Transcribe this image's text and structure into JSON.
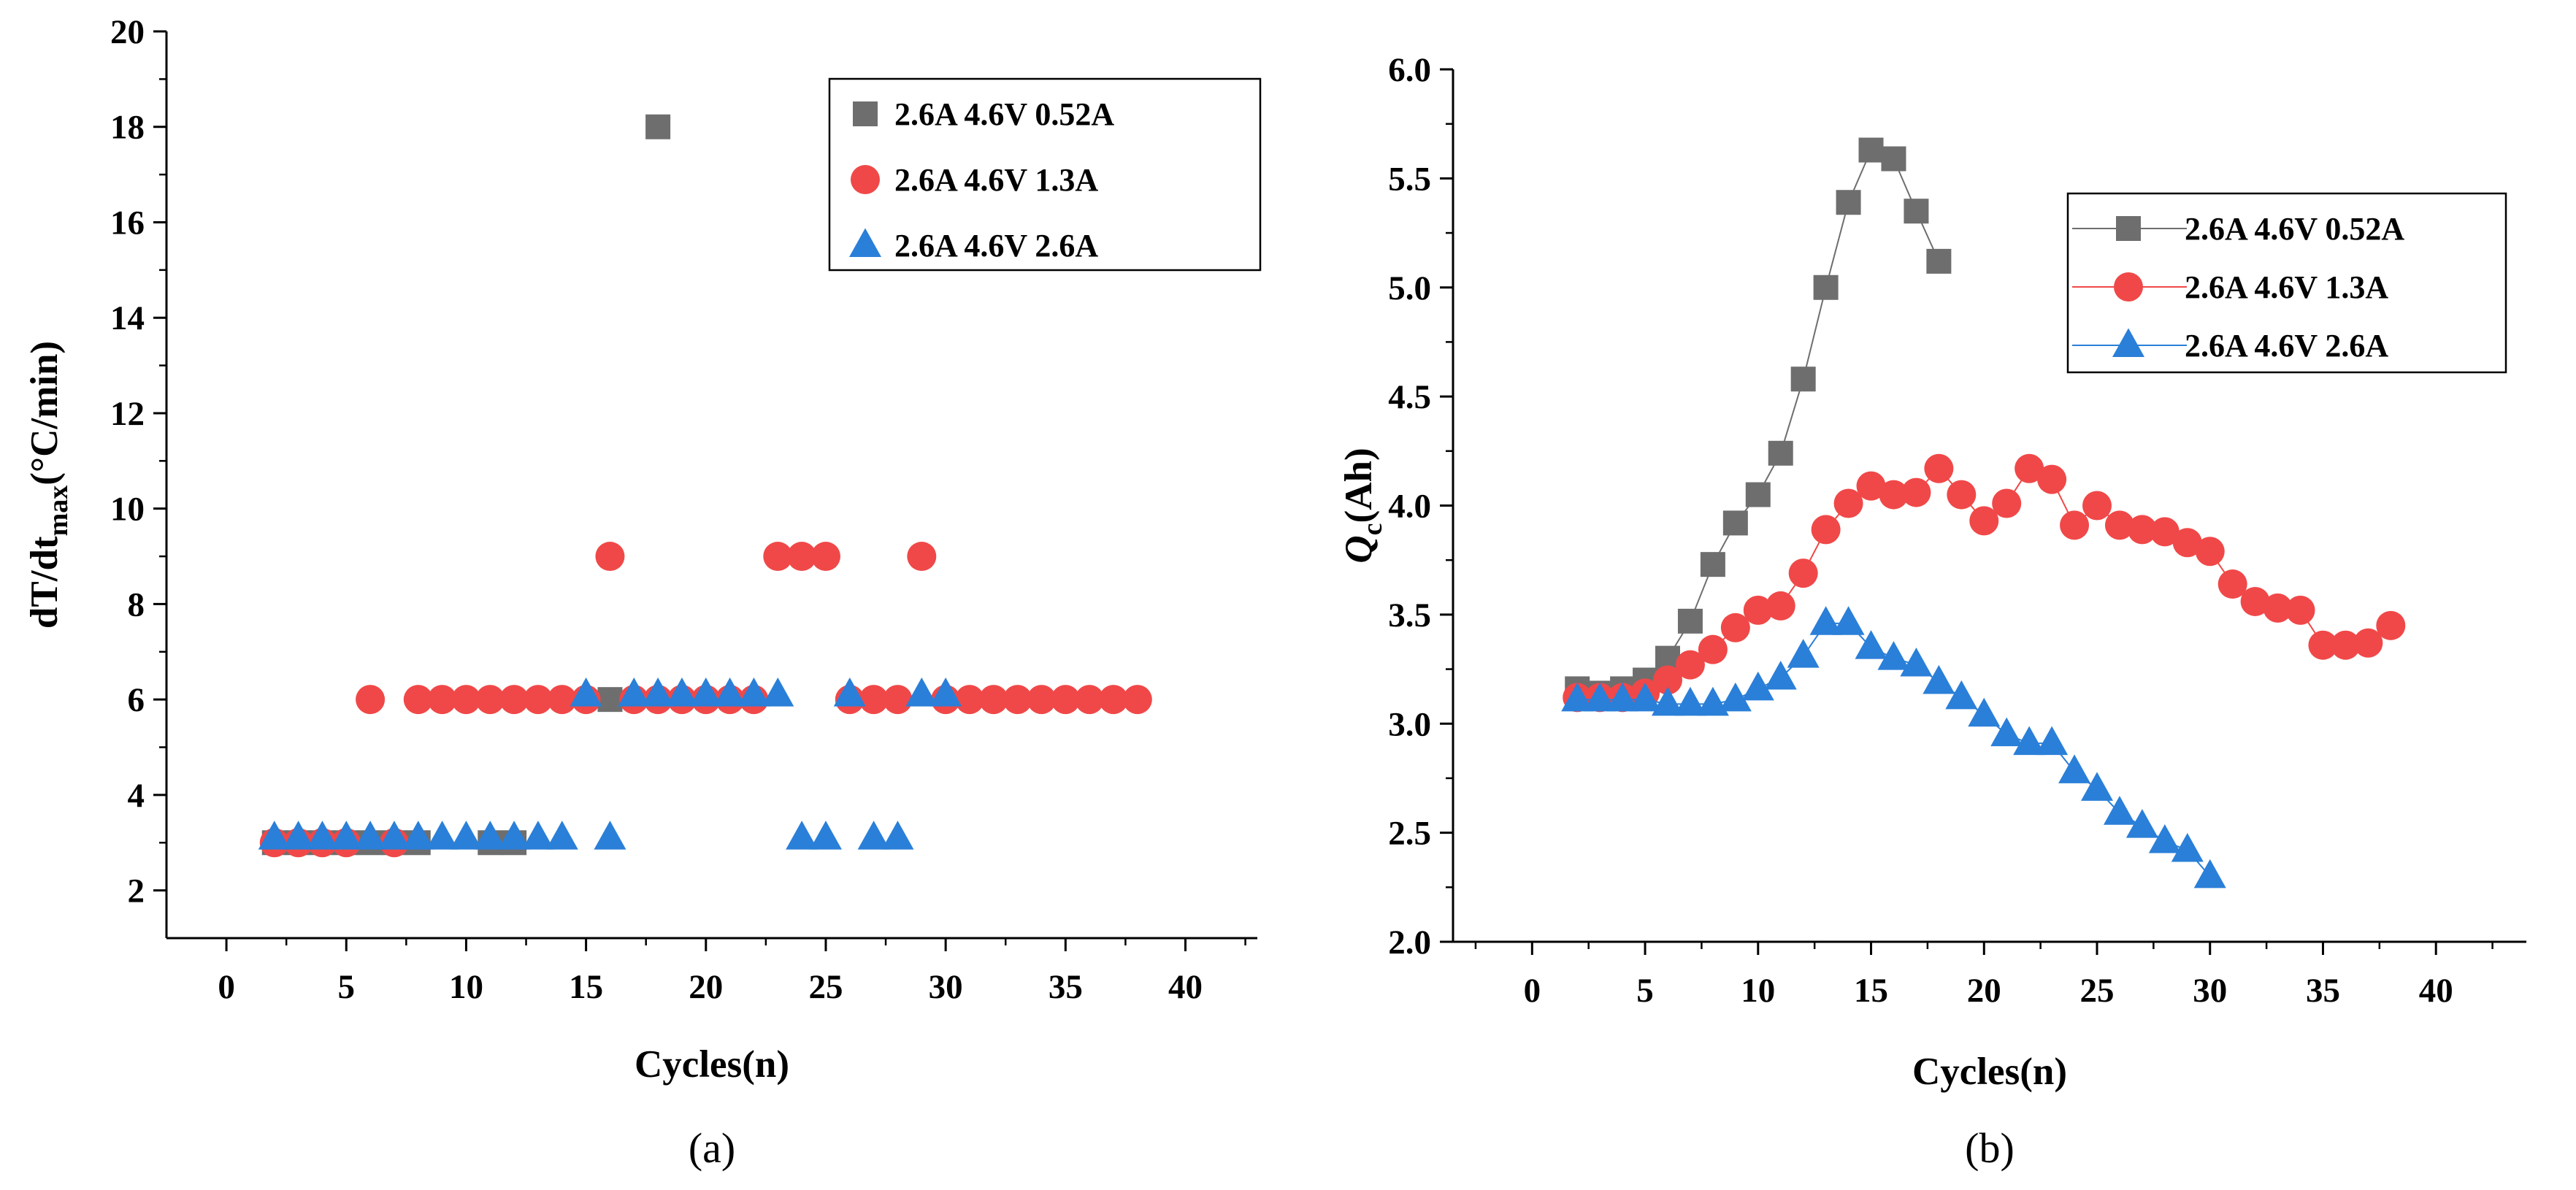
{
  "figure": {
    "panels": [
      "(a)",
      "(b)"
    ]
  },
  "colors": {
    "gray": "#6e6e6e",
    "red": "#f04848",
    "blue": "#2a7fd8",
    "axis": "#000000"
  },
  "chart_data": [
    {
      "id": "a",
      "type": "scatter",
      "panel_label": "(a)",
      "title": "",
      "xlabel": "Cycles(n)",
      "ylabel": "dT/dt",
      "ylabel_sub": "max",
      "ylabel_unit": "(°C/min)",
      "xlim": [
        -2.5,
        43
      ],
      "ylim": [
        1,
        20
      ],
      "xticks": [
        0,
        5,
        10,
        15,
        20,
        25,
        30,
        35,
        40
      ],
      "yticks": [
        2,
        4,
        6,
        8,
        10,
        12,
        14,
        16,
        18,
        20
      ],
      "legend_position": "top-right",
      "series": [
        {
          "name": "2.6A 4.6V 0.52A",
          "marker": "square",
          "color": "#6e6e6e",
          "points": [
            [
              2,
              3
            ],
            [
              3,
              3
            ],
            [
              4,
              3
            ],
            [
              5,
              3
            ],
            [
              6,
              3
            ],
            [
              7,
              3
            ],
            [
              8,
              3
            ],
            [
              11,
              3
            ],
            [
              12,
              3
            ],
            [
              16,
              6
            ],
            [
              18,
              18
            ]
          ]
        },
        {
          "name": "2.6A 4.6V 1.3A",
          "marker": "circle",
          "color": "#f04848",
          "points": [
            [
              2,
              3
            ],
            [
              3,
              3
            ],
            [
              4,
              3
            ],
            [
              5,
              3
            ],
            [
              6,
              6
            ],
            [
              7,
              3
            ],
            [
              8,
              6
            ],
            [
              9,
              6
            ],
            [
              10,
              6
            ],
            [
              11,
              6
            ],
            [
              12,
              6
            ],
            [
              13,
              6
            ],
            [
              14,
              6
            ],
            [
              15,
              6
            ],
            [
              16,
              9
            ],
            [
              17,
              6
            ],
            [
              18,
              6
            ],
            [
              19,
              6
            ],
            [
              20,
              6
            ],
            [
              21,
              6
            ],
            [
              22,
              6
            ],
            [
              23,
              9
            ],
            [
              24,
              9
            ],
            [
              25,
              9
            ],
            [
              26,
              6
            ],
            [
              27,
              6
            ],
            [
              28,
              6
            ],
            [
              29,
              9
            ],
            [
              30,
              6
            ],
            [
              31,
              6
            ],
            [
              32,
              6
            ],
            [
              33,
              6
            ],
            [
              34,
              6
            ],
            [
              35,
              6
            ],
            [
              36,
              6
            ],
            [
              37,
              6
            ],
            [
              38,
              6
            ]
          ]
        },
        {
          "name": "2.6A 4.6V 2.6A",
          "marker": "triangle",
          "color": "#2a7fd8",
          "points": [
            [
              2,
              3.1
            ],
            [
              3,
              3.1
            ],
            [
              4,
              3.1
            ],
            [
              5,
              3.1
            ],
            [
              6,
              3.1
            ],
            [
              7,
              3.1
            ],
            [
              8,
              3.1
            ],
            [
              9,
              3.1
            ],
            [
              10,
              3.1
            ],
            [
              11,
              3.1
            ],
            [
              12,
              3.1
            ],
            [
              13,
              3.1
            ],
            [
              14,
              3.1
            ],
            [
              15,
              6.1
            ],
            [
              16,
              3.1
            ],
            [
              17,
              6.1
            ],
            [
              18,
              6.1
            ],
            [
              19,
              6.1
            ],
            [
              20,
              6.1
            ],
            [
              21,
              6.1
            ],
            [
              22,
              6.1
            ],
            [
              23,
              6.1
            ],
            [
              24,
              3.1
            ],
            [
              25,
              3.1
            ],
            [
              26,
              6.1
            ],
            [
              27,
              3.1
            ],
            [
              28,
              3.1
            ],
            [
              29,
              6.1
            ],
            [
              30,
              6.1
            ]
          ]
        }
      ]
    },
    {
      "id": "b",
      "type": "line",
      "panel_label": "(b)",
      "title": "",
      "xlabel": "Cycles(n)",
      "ylabel": "Q",
      "ylabel_sub": "c",
      "ylabel_unit": "(Ah)",
      "xlim": [
        -3.5,
        44
      ],
      "ylim": [
        2.0,
        6.0
      ],
      "xticks": [
        0,
        5,
        10,
        15,
        20,
        25,
        30,
        35,
        40
      ],
      "yticks": [
        2.0,
        2.5,
        3.0,
        3.5,
        4.0,
        4.5,
        5.0,
        5.5,
        6.0
      ],
      "tick_format": "0.0",
      "legend_position": "top-right",
      "series": [
        {
          "name": "2.6A 4.6V 0.52A",
          "marker": "square",
          "color": "#6e6e6e",
          "points": [
            [
              2,
              3.16
            ],
            [
              3,
              3.14
            ],
            [
              4,
              3.16
            ],
            [
              5,
              3.2
            ],
            [
              6,
              3.3
            ],
            [
              7,
              3.47
            ],
            [
              8,
              3.73
            ],
            [
              9,
              3.92
            ],
            [
              10,
              4.05
            ],
            [
              11,
              4.24
            ],
            [
              12,
              4.58
            ],
            [
              13,
              5.0
            ],
            [
              14,
              5.39
            ],
            [
              15,
              5.63
            ],
            [
              16,
              5.59
            ],
            [
              17,
              5.35
            ],
            [
              18,
              5.12
            ]
          ]
        },
        {
          "name": "2.6A 4.6V 1.3A",
          "marker": "circle",
          "color": "#f04848",
          "points": [
            [
              2,
              3.12
            ],
            [
              3,
              3.12
            ],
            [
              4,
              3.12
            ],
            [
              5,
              3.14
            ],
            [
              6,
              3.2
            ],
            [
              7,
              3.27
            ],
            [
              8,
              3.34
            ],
            [
              9,
              3.44
            ],
            [
              10,
              3.52
            ],
            [
              11,
              3.54
            ],
            [
              12,
              3.69
            ],
            [
              13,
              3.89
            ],
            [
              14,
              4.01
            ],
            [
              15,
              4.09
            ],
            [
              16,
              4.05
            ],
            [
              17,
              4.06
            ],
            [
              18,
              4.17
            ],
            [
              19,
              4.05
            ],
            [
              20,
              3.93
            ],
            [
              21,
              4.01
            ],
            [
              22,
              4.17
            ],
            [
              23,
              4.12
            ],
            [
              24,
              3.91
            ],
            [
              25,
              4.0
            ],
            [
              26,
              3.91
            ],
            [
              27,
              3.89
            ],
            [
              28,
              3.88
            ],
            [
              29,
              3.83
            ],
            [
              30,
              3.79
            ],
            [
              31,
              3.64
            ],
            [
              32,
              3.56
            ],
            [
              33,
              3.53
            ],
            [
              34,
              3.52
            ],
            [
              35,
              3.36
            ],
            [
              36,
              3.36
            ],
            [
              37,
              3.37
            ],
            [
              38,
              3.45
            ]
          ]
        },
        {
          "name": "2.6A 4.6V 2.6A",
          "marker": "triangle",
          "color": "#2a7fd8",
          "points": [
            [
              2,
              3.11
            ],
            [
              3,
              3.11
            ],
            [
              4,
              3.11
            ],
            [
              5,
              3.11
            ],
            [
              6,
              3.09
            ],
            [
              7,
              3.09
            ],
            [
              8,
              3.09
            ],
            [
              9,
              3.11
            ],
            [
              10,
              3.16
            ],
            [
              11,
              3.21
            ],
            [
              12,
              3.31
            ],
            [
              13,
              3.46
            ],
            [
              14,
              3.46
            ],
            [
              15,
              3.35
            ],
            [
              16,
              3.3
            ],
            [
              17,
              3.27
            ],
            [
              18,
              3.19
            ],
            [
              19,
              3.12
            ],
            [
              20,
              3.04
            ],
            [
              21,
              2.95
            ],
            [
              22,
              2.91
            ],
            [
              23,
              2.91
            ],
            [
              24,
              2.78
            ],
            [
              25,
              2.7
            ],
            [
              26,
              2.59
            ],
            [
              27,
              2.53
            ],
            [
              28,
              2.46
            ],
            [
              29,
              2.42
            ],
            [
              30,
              2.3
            ]
          ]
        }
      ]
    }
  ]
}
